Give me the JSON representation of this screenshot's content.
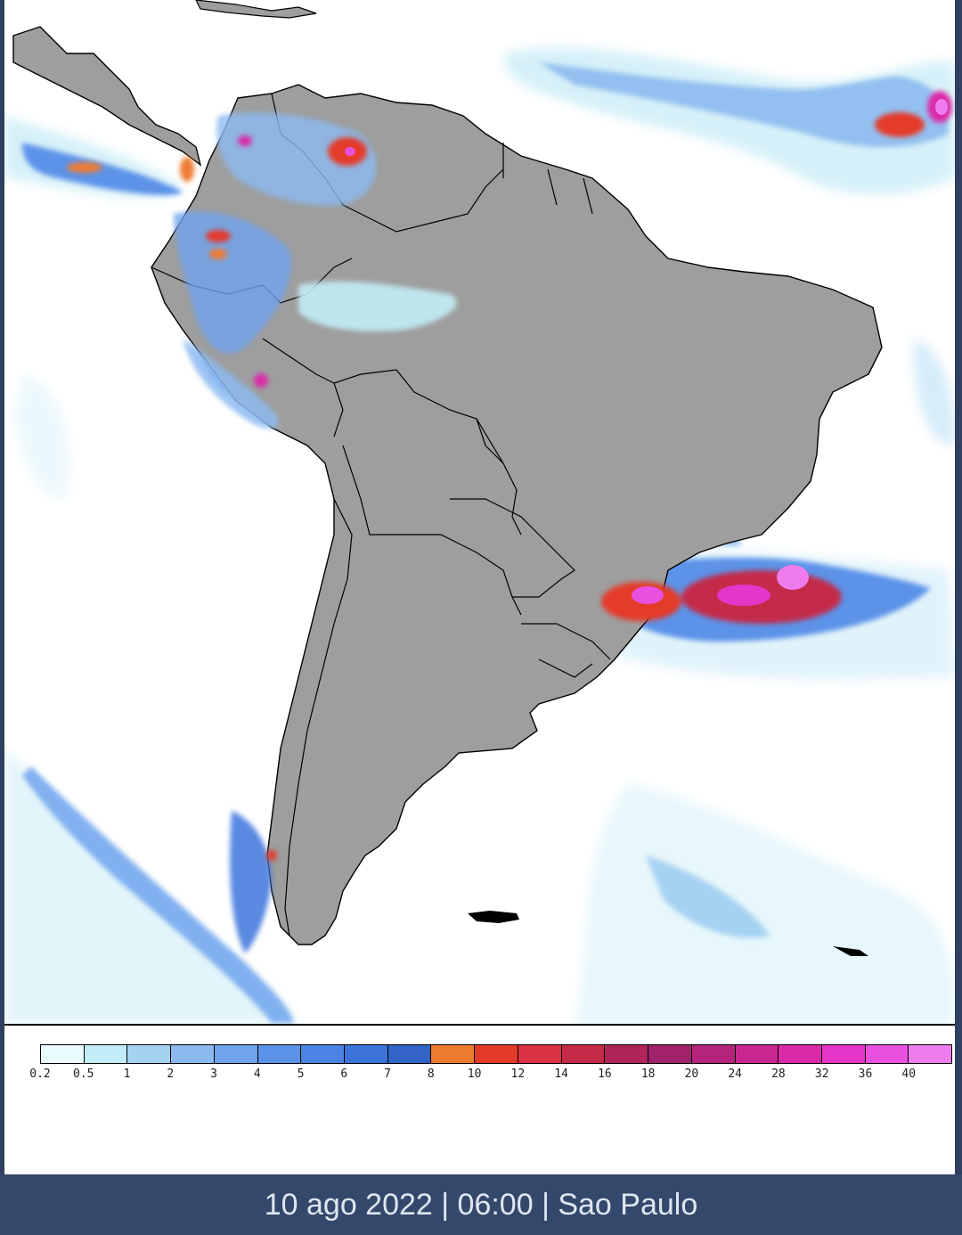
{
  "legend": {
    "ticks": [
      "0.2",
      "0.5",
      "1",
      "2",
      "3",
      "4",
      "5",
      "6",
      "7",
      "8",
      "10",
      "12",
      "14",
      "16",
      "18",
      "20",
      "24",
      "28",
      "32",
      "36",
      "40"
    ],
    "colors": [
      "#e9fbfd",
      "#c2ecf6",
      "#a6d2f2",
      "#8cbaf0",
      "#6fa3ed",
      "#5b93e8",
      "#4b84e2",
      "#3c74dc",
      "#3365c9",
      "#ee7c30",
      "#e43a2a",
      "#d93240",
      "#c52a48",
      "#b02457",
      "#a0226a",
      "#b4247d",
      "#c82790",
      "#db2aa8",
      "#e636c9",
      "#ea50e0",
      "#ee7cec"
    ]
  },
  "footer": {
    "caption": "10 ago 2022 | 06:00 | Sao Paulo"
  }
}
